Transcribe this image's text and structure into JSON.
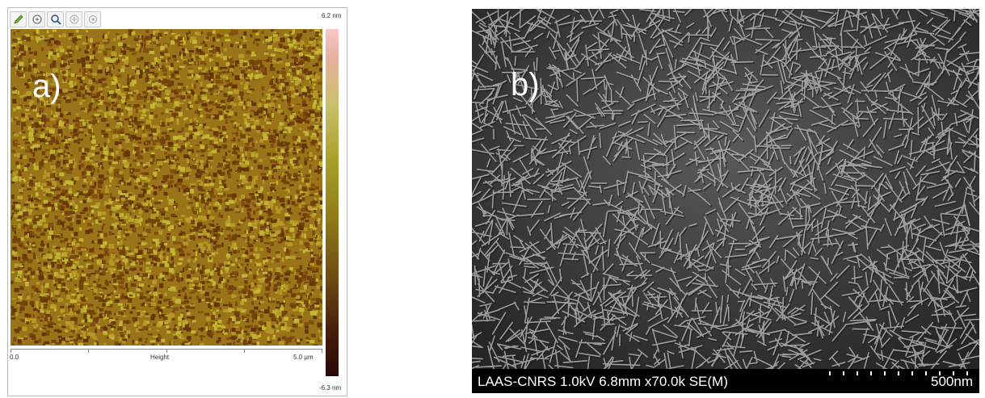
{
  "panel_a": {
    "label": "a)",
    "toolbar": {
      "icons": [
        "pencil-icon",
        "hand-icon",
        "zoom-icon",
        "zoom-in-icon",
        "settings-icon"
      ]
    },
    "scale_max": "6.2 nm",
    "scale_min": "-6.3 nm",
    "axis_start": "0.0",
    "axis_title": "Height",
    "axis_end": "5.0 µm",
    "colors": {
      "dark": "#5a2a08",
      "mid": "#9a7418",
      "light": "#c9c23a"
    }
  },
  "panel_b": {
    "label": "b)",
    "info": "LAAS-CNRS 1.0kV 6.8mm x70.0k SE(M)",
    "scale": "500nm",
    "colors": {
      "background": "#3a3a3a",
      "flake": "#c4c4c4",
      "bar": "#000000"
    }
  }
}
